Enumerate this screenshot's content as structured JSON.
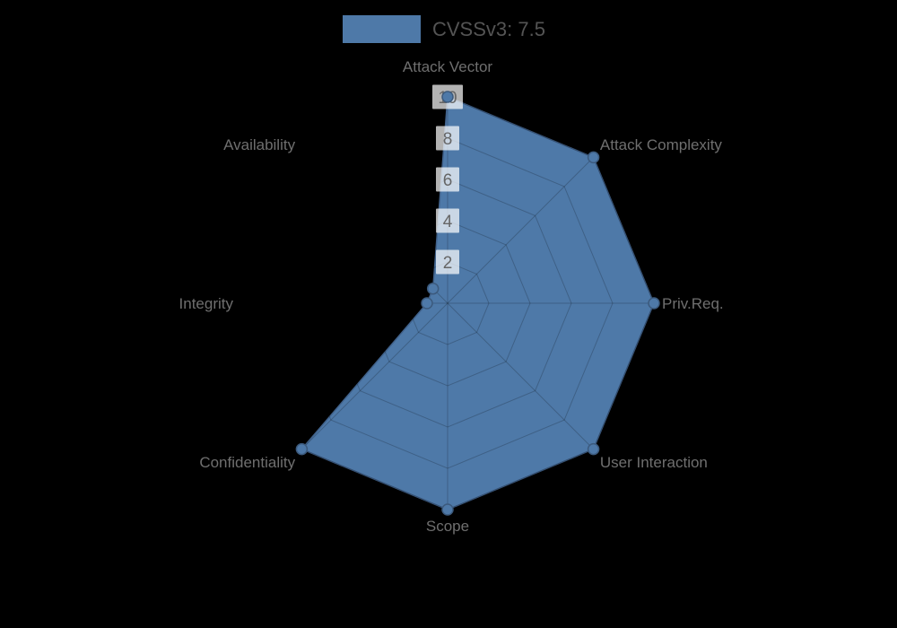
{
  "page": {
    "background": "#000000"
  },
  "legend": {
    "label": "CVSSv3: 7.5",
    "swatch_color": "#4e79a8"
  },
  "chart_data": {
    "type": "radar",
    "title": "CVSSv3: 7.5",
    "axes": [
      "Attack Vector",
      "Attack Complexity",
      "Priv.Req.",
      "User Interaction",
      "Scope",
      "Confidentiality",
      "Integrity",
      "Availability"
    ],
    "series": [
      {
        "name": "CVSSv3: 7.5",
        "values": [
          10,
          10,
          10,
          10,
          10,
          10,
          1,
          1
        ],
        "color": "#4e79a8"
      }
    ],
    "ticks": [
      2,
      4,
      6,
      8,
      10
    ],
    "max": 10,
    "grid_shape": "polygon",
    "grid_on": true,
    "legend_position": "top-center",
    "colors": {
      "grid_line": "rgba(0,0,0,0.2)",
      "axis_label": "#6f6f6f",
      "tick_label": "#666666",
      "tick_label_bg": "rgba(255,255,255,0.7)",
      "series_fill": "#4e79a8",
      "series_stroke": "#40618a",
      "marker_stroke": "#3c5a7d",
      "legend_text": "#545454"
    }
  }
}
